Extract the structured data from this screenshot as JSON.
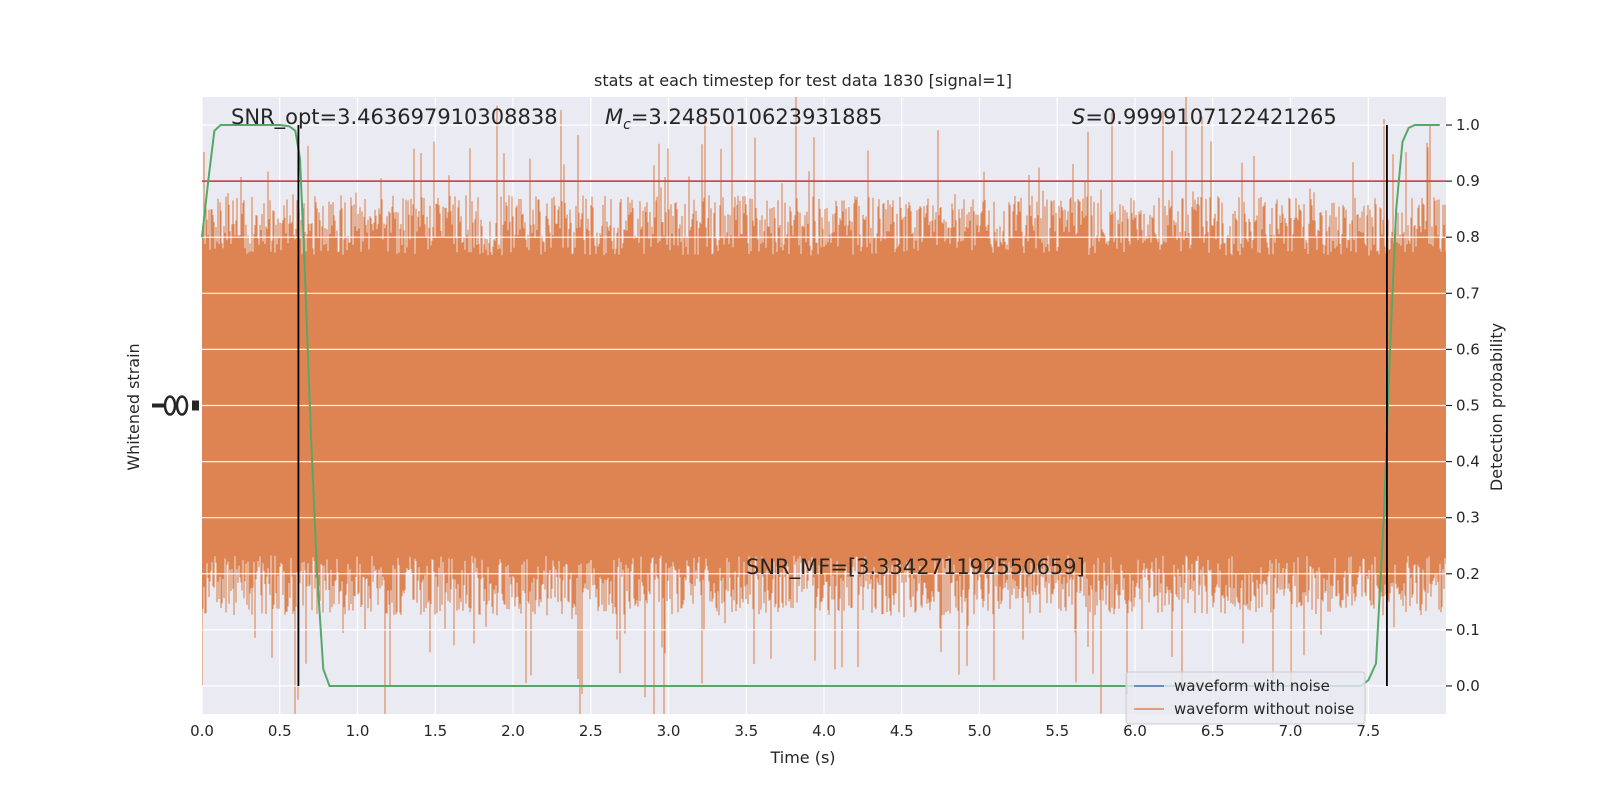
{
  "chart_data": {
    "type": "line",
    "title": "stats at each timestep for test data 1830 [signal=1]",
    "xlabel": "Time (s)",
    "ylabel_left": "Whitened strain",
    "ylabel_right": "Detection probability",
    "xlim": [
      0.0,
      8.0
    ],
    "ylim_right": [
      -0.05,
      1.05
    ],
    "x_ticks": [
      "0.0",
      "0.5",
      "1.0",
      "1.5",
      "2.0",
      "2.5",
      "3.0",
      "3.5",
      "4.0",
      "4.5",
      "5.0",
      "5.5",
      "6.0",
      "6.5",
      "7.0",
      "7.5"
    ],
    "y_ticks_right": [
      "0.0",
      "0.1",
      "0.2",
      "0.3",
      "0.4",
      "0.5",
      "0.6",
      "0.7",
      "0.8",
      "0.9",
      "1.0"
    ],
    "grid": true,
    "legend_position": "bottom-right",
    "series": [
      {
        "name": "waveform with noise",
        "color": "#4c72b0"
      },
      {
        "name": "waveform without noise",
        "color": "#dd8452"
      }
    ],
    "detection_probability": {
      "color": "#55a868",
      "x": [
        0.0,
        0.04,
        0.08,
        0.12,
        0.2,
        0.3,
        0.4,
        0.5,
        0.56,
        0.6,
        0.63,
        0.66,
        0.7,
        0.74,
        0.78,
        0.82,
        1.0,
        2.0,
        3.0,
        4.0,
        5.0,
        6.0,
        7.0,
        7.45,
        7.5,
        7.55,
        7.6,
        7.64,
        7.68,
        7.72,
        7.76,
        7.8,
        7.9,
        7.96
      ],
      "y": [
        0.8,
        0.9,
        0.99,
        1.0,
        1.0,
        1.0,
        1.0,
        1.0,
        0.998,
        0.99,
        0.94,
        0.75,
        0.45,
        0.2,
        0.03,
        0.0,
        0.0,
        0.0,
        0.0,
        0.0,
        0.0,
        0.0,
        0.0,
        0.0,
        0.01,
        0.04,
        0.3,
        0.6,
        0.85,
        0.97,
        0.995,
        1.0,
        1.0,
        1.0
      ]
    },
    "threshold": {
      "y": 0.9,
      "color": "#c44e52"
    },
    "vertical_markers": {
      "x": [
        0.62,
        7.62
      ],
      "ymin": 0.0,
      "ymax": 1.0,
      "color": "#000000"
    },
    "annotations": {
      "snr_opt": "SNR_opt=3.463697910308838",
      "mc_symbol": "M",
      "mc_sub": "c",
      "mc_value": "=3.2485010623931885",
      "s_symbol": "S",
      "s_value": "=0.9999107122421265",
      "snr_mf": "SNR_MF=[3.334271192550659]"
    }
  }
}
